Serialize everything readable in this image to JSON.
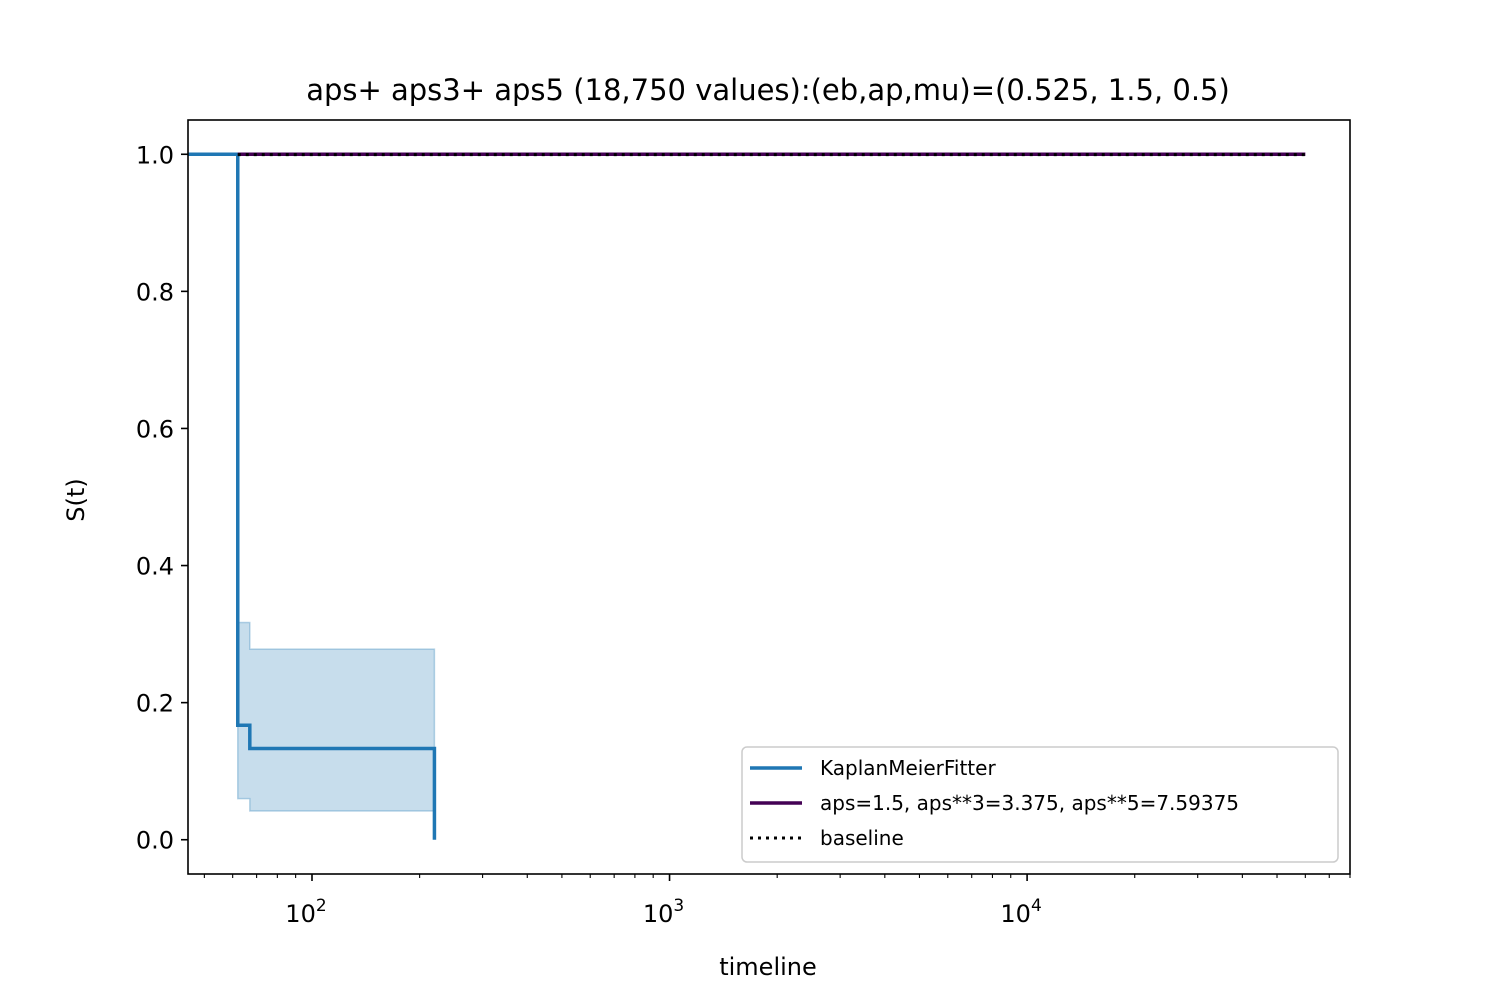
{
  "chart_data": {
    "type": "line",
    "title": "aps+ aps3+ aps5 (18,750 values):(eb,ap,mu)=(0.525, 1.5, 0.5)",
    "xlabel": "timeline",
    "ylabel": "S(t)",
    "xscale": "log",
    "xlim": [
      45,
      80000
    ],
    "ylim": [
      -0.05,
      1.05
    ],
    "x_ticks": [
      {
        "value": 100,
        "base": "10",
        "exp": "2"
      },
      {
        "value": 1000,
        "base": "10",
        "exp": "3"
      },
      {
        "value": 10000,
        "base": "10",
        "exp": "4"
      }
    ],
    "y_ticks": [
      {
        "value": 0.0,
        "label": "0.0"
      },
      {
        "value": 0.2,
        "label": "0.2"
      },
      {
        "value": 0.4,
        "label": "0.4"
      },
      {
        "value": 0.6,
        "label": "0.6"
      },
      {
        "value": 0.8,
        "label": "0.8"
      },
      {
        "value": 1.0,
        "label": "1.0"
      }
    ],
    "grid": false,
    "legend_position": "lower-right",
    "series": [
      {
        "name": "KaplanMeierFitter",
        "style": "step",
        "color": "#1f77b4",
        "x": [
          45,
          62,
          62,
          67,
          67,
          220,
          220
        ],
        "y": [
          1.0,
          1.0,
          0.167,
          0.167,
          0.133,
          0.133,
          0.0
        ],
        "ci": {
          "x": [
            62,
            67,
            220
          ],
          "upper": [
            0.317,
            0.278,
            0.278
          ],
          "lower": [
            0.06,
            0.042,
            0.042
          ],
          "color": "#1f77b4",
          "alpha": 0.25
        }
      },
      {
        "name": "aps=1.5, aps**3=3.375, aps**5=7.59375",
        "style": "line",
        "color": "#440154",
        "x": [
          62,
          60000
        ],
        "y": [
          1.0,
          1.0
        ]
      },
      {
        "name": "baseline",
        "style": "dotted",
        "color": "#000000",
        "x": [
          62,
          60000
        ],
        "y": [
          0.9995,
          0.9995
        ]
      }
    ]
  }
}
